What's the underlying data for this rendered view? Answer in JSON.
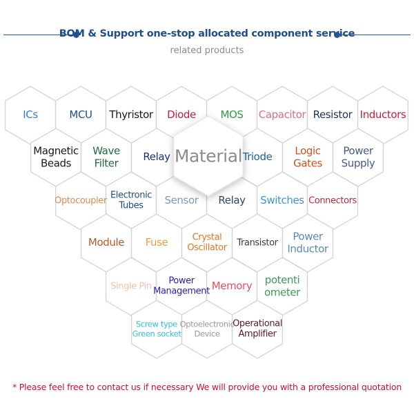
{
  "header": {
    "title": "BOM & Support one-stop allocated component service",
    "subtitle": "related products",
    "accent": "#1f5a96"
  },
  "center": {
    "label": "Material",
    "color": "#8c8c8c"
  },
  "rows": [
    [
      {
        "label": "ICs",
        "color": "#2f7fc1"
      },
      {
        "label": "MCU",
        "color": "#1f4d8c"
      },
      {
        "label": "Thyristor",
        "color": "#1a1a1a"
      },
      {
        "label": "Diode",
        "color": "#c0203c"
      },
      {
        "label": "MOS",
        "color": "#2e9a4a"
      },
      {
        "label": "Capacitor",
        "color": "#d9707e"
      },
      {
        "label": "Resistor",
        "color": "#1c3557"
      },
      {
        "label": "Inductors",
        "color": "#c8203a"
      }
    ],
    [
      {
        "label": "Magnetic\nBeads",
        "color": "#1a1a1a"
      },
      {
        "label": "Wave\nFilter",
        "color": "#1e6b3a"
      },
      {
        "label": "Relay",
        "color": "#1f2f7a"
      },
      null,
      {
        "label": "Triode",
        "color": "#1f5f9a"
      },
      {
        "label": "Logic\nGates",
        "color": "#d0501a"
      },
      {
        "label": "Power\nSupply",
        "color": "#4a5a80"
      }
    ],
    [
      {
        "label": "Optocoupler",
        "color": "#e08a50"
      },
      {
        "label": "Electronic\nTubes",
        "color": "#1f4d80"
      },
      {
        "label": "Sensor",
        "color": "#7a98b8"
      },
      {
        "label": "Relay",
        "color": "#2f4560"
      },
      {
        "label": "Switches",
        "color": "#3a96d0"
      },
      {
        "label": "Connectors",
        "color": "#c0283a"
      }
    ],
    [
      {
        "label": "Module",
        "color": "#b8582a"
      },
      {
        "label": "Fuse",
        "color": "#e8a040"
      },
      {
        "label": "Crystal\nOscillator",
        "color": "#e07820"
      },
      {
        "label": "Transistor",
        "color": "#3a3a3a"
      },
      {
        "label": "Power\nInductor",
        "color": "#5a88b8"
      }
    ],
    [
      {
        "label": "Single Pin",
        "color": "#f0c0b0"
      },
      {
        "label": "Power\nManagement",
        "color": "#2a20b0"
      },
      {
        "label": "Memory",
        "color": "#e05060"
      },
      {
        "label": "potenti\nometer",
        "color": "#3a9a5a"
      }
    ],
    [
      {
        "label": "Screw type\nGreen socket",
        "color": "#30c0e0"
      },
      {
        "label": "Optoelectronic\nDevice",
        "color": "#9a9a9a"
      },
      {
        "label": "Operational\nAmplifier",
        "color": "#5a1a2a"
      }
    ]
  ],
  "footer": {
    "text": "* Please feel free to contact us if necessary We will provide you with a professional quotation"
  }
}
